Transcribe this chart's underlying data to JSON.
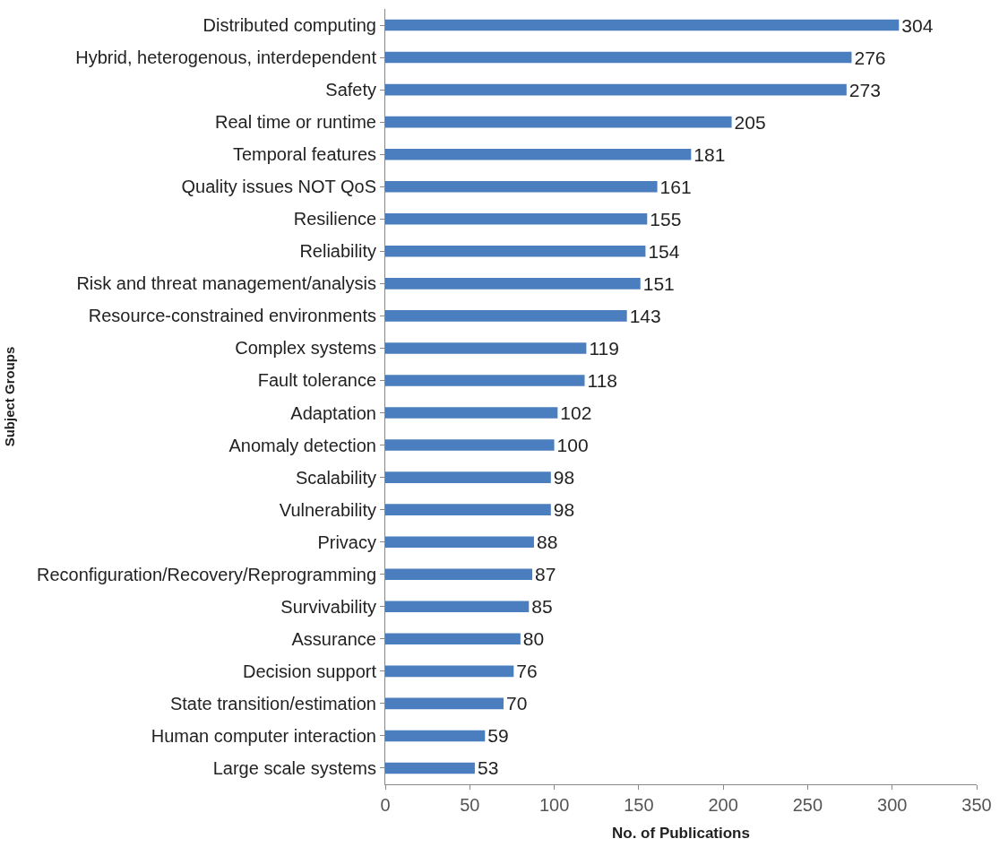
{
  "chart_data": {
    "type": "bar",
    "orientation": "horizontal",
    "xlabel": "No. of Publications",
    "ylabel": "Subject Groups",
    "categories": [
      "Distributed computing",
      "Hybrid, heterogenous, interdependent",
      "Safety",
      "Real time or runtime",
      "Temporal features",
      "Quality issues NOT QoS",
      "Resilience",
      "Reliability",
      "Risk and threat management/analysis",
      "Resource-constrained environments",
      "Complex systems",
      "Fault tolerance",
      "Adaptation",
      "Anomaly detection",
      "Scalability",
      "Vulnerability",
      "Privacy",
      "Reconfiguration/Recovery/Reprogramming",
      "Survivability",
      "Assurance",
      "Decision support",
      "State transition/estimation",
      "Human computer interaction",
      "Large scale systems"
    ],
    "values": [
      304,
      276,
      273,
      205,
      181,
      161,
      155,
      154,
      151,
      143,
      119,
      118,
      102,
      100,
      98,
      98,
      88,
      87,
      85,
      80,
      76,
      70,
      59,
      53
    ],
    "color": "#4a7ebf",
    "data_labels": true,
    "xlim": [
      0,
      350
    ],
    "xticks": [
      0,
      50,
      100,
      150,
      200,
      250,
      300,
      350
    ]
  }
}
